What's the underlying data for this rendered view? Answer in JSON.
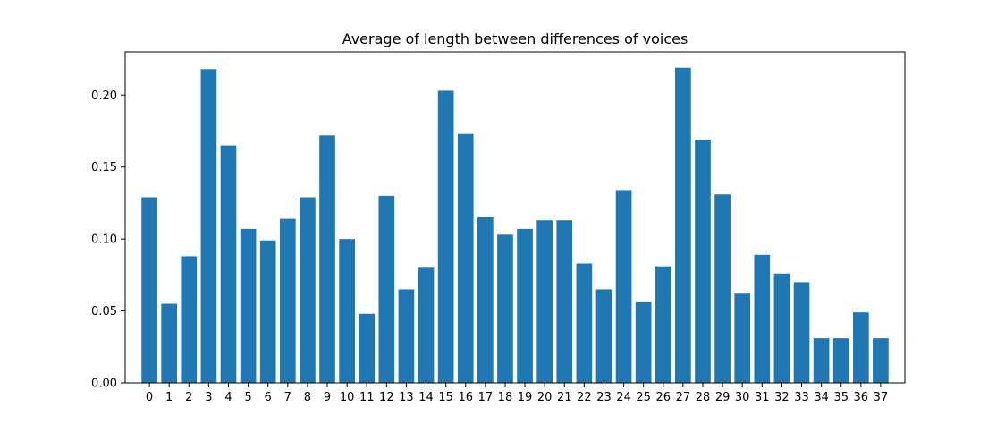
{
  "chart_data": {
    "type": "bar",
    "title": "Average of length between differences of voices",
    "xlabel": "",
    "ylabel": "",
    "categories": [
      "0",
      "1",
      "2",
      "3",
      "4",
      "5",
      "6",
      "7",
      "8",
      "9",
      "10",
      "11",
      "12",
      "13",
      "14",
      "15",
      "16",
      "17",
      "18",
      "19",
      "20",
      "21",
      "22",
      "23",
      "24",
      "25",
      "26",
      "27",
      "28",
      "29",
      "30",
      "31",
      "32",
      "33",
      "34",
      "35",
      "36",
      "37"
    ],
    "values": [
      0.129,
      0.055,
      0.088,
      0.218,
      0.165,
      0.107,
      0.099,
      0.114,
      0.129,
      0.172,
      0.1,
      0.048,
      0.13,
      0.065,
      0.08,
      0.203,
      0.173,
      0.115,
      0.103,
      0.107,
      0.113,
      0.113,
      0.083,
      0.065,
      0.134,
      0.056,
      0.081,
      0.219,
      0.169,
      0.131,
      0.062,
      0.089,
      0.076,
      0.07,
      0.031,
      0.031,
      0.049,
      0.031
    ],
    "ylim": [
      0,
      0.23
    ],
    "yticks": [
      "0.00",
      "0.05",
      "0.10",
      "0.15",
      "0.20"
    ],
    "bar_color": "#1f77b4",
    "grid": false,
    "legend": "none"
  }
}
